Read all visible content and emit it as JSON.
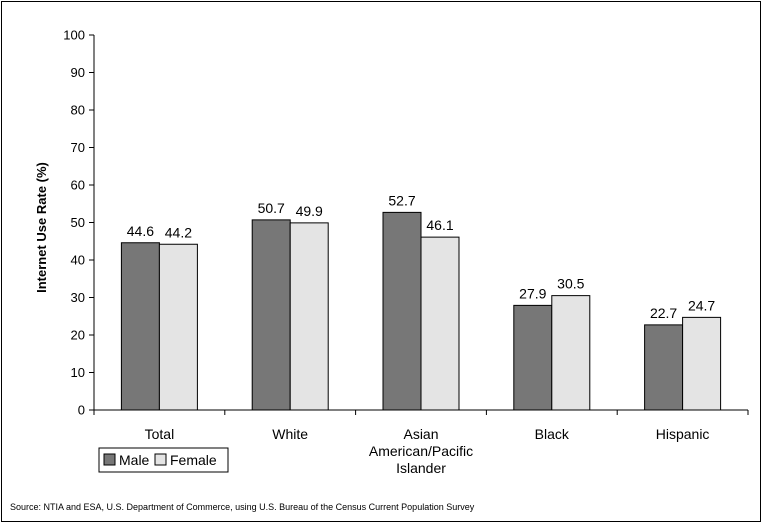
{
  "chart_data": {
    "type": "bar",
    "categories": [
      [
        "Total"
      ],
      [
        "White"
      ],
      [
        "Asian",
        "American/Pacific",
        "Islander"
      ],
      [
        "Black"
      ],
      [
        "Hispanic"
      ]
    ],
    "series": [
      {
        "name": "Male",
        "values": [
          44.6,
          50.7,
          52.7,
          27.9,
          22.7
        ],
        "color": "#777777"
      },
      {
        "name": "Female",
        "values": [
          44.2,
          49.9,
          46.1,
          30.5,
          24.7
        ],
        "color": "#e4e4e4"
      }
    ],
    "data_labels": {
      "Male": [
        "44.6",
        "50.7",
        "52.7",
        "27.9",
        "22.7"
      ],
      "Female": [
        "44.2",
        "49.9",
        "46.1",
        "30.5",
        "24.7"
      ]
    },
    "ylabel": "Internet Use Rate (%)",
    "ylim": [
      0,
      100
    ],
    "yticks": [
      "0",
      "10",
      "20",
      "30",
      "40",
      "50",
      "60",
      "70",
      "80",
      "90",
      "100"
    ],
    "grid": false,
    "legend_placement": "bottom-left"
  },
  "source": "Source: NTIA and ESA, U.S. Department of Commerce, using U.S. Bureau of the Census Current Population Survey"
}
